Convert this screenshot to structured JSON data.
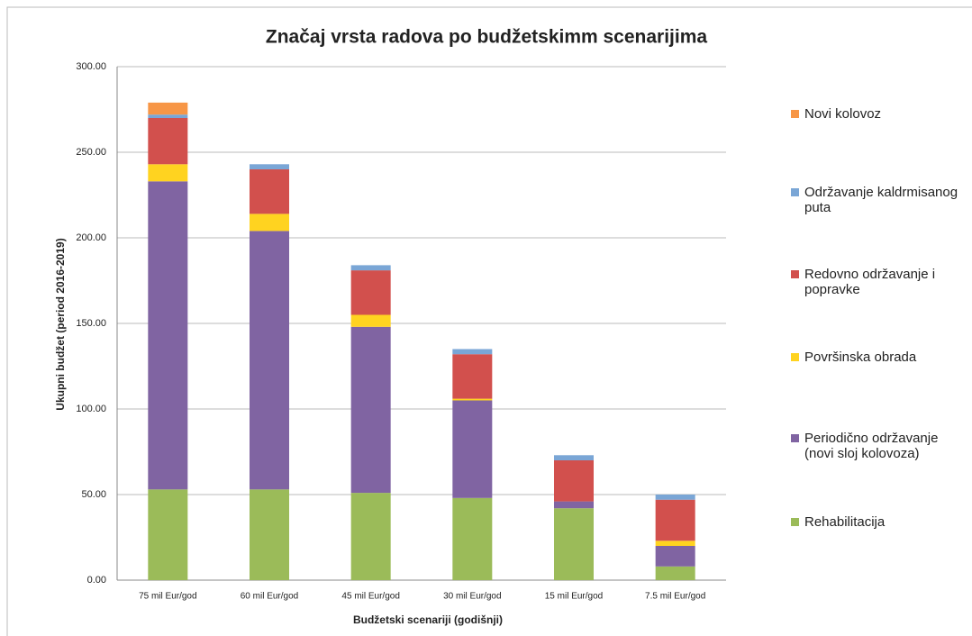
{
  "chart_data": {
    "type": "bar",
    "stacked": true,
    "title": "Značaj vrsta radova po budžetskimm scenarijima",
    "x_label": "Budžetski scenariji (godišnji)",
    "y_label": "Ukupni budžet (period 2016-2019)",
    "categories": [
      "75 mil Eur/god",
      "60 mil Eur/god",
      "45 mil Eur/god",
      "30 mil Eur/god",
      "15 mil Eur/god",
      "7.5 mil Eur/god"
    ],
    "series": [
      {
        "name": "Rehabilitacija",
        "color": "#9bbb59",
        "values": [
          53,
          53,
          51,
          48,
          42,
          8
        ]
      },
      {
        "name": "Periodično održavanje (novi sloj kolovoza)",
        "color": "#8064a2",
        "values": [
          180,
          151,
          97,
          57,
          4,
          12
        ]
      },
      {
        "name": "Površinska obrada",
        "color": "#ffd320",
        "values": [
          10,
          10,
          7,
          1,
          0,
          3
        ]
      },
      {
        "name": "Redovno održavanje i popravke",
        "color": "#d2504d",
        "values": [
          27,
          26,
          26,
          26,
          24,
          24
        ]
      },
      {
        "name": "Održavanje kaldrmisanog puta",
        "color": "#7aa6d6",
        "values": [
          2,
          3,
          3,
          3,
          3,
          3
        ]
      },
      {
        "name": "Novi kolovoz",
        "color": "#f79646",
        "values": [
          7,
          0,
          0,
          0,
          0,
          0
        ]
      }
    ],
    "ylim": [
      0,
      300
    ],
    "yticks": [
      {
        "value": 0,
        "label": "0.00"
      },
      {
        "value": 50,
        "label": "50.00"
      },
      {
        "value": 100,
        "label": "100.00"
      },
      {
        "value": 150,
        "label": "150.00"
      },
      {
        "value": 200,
        "label": "200.00"
      },
      {
        "value": 250,
        "label": "250.00"
      },
      {
        "value": 300,
        "label": "300.00"
      }
    ],
    "grid": true,
    "legend": "right"
  }
}
